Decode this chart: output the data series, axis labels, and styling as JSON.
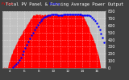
{
  "title": "Total PV Panel & Running Average Power Output",
  "bg_color": "#404040",
  "plot_bg": "#c0c0c0",
  "grid_color": "#ffffff",
  "area_color": "#ff0000",
  "avg_color": "#0000ff",
  "ylim": [
    0,
    800
  ],
  "ylabel_fontsize": 3.5,
  "xlabel_fontsize": 3.0,
  "title_fontsize": 4.0,
  "num_points": 200,
  "xlim_start": 0,
  "xlim_end": 200,
  "ytick_vals": [
    0,
    100,
    200,
    300,
    400,
    500,
    600,
    700,
    800
  ],
  "xtick_positions": [
    14,
    28,
    42,
    56,
    70,
    84,
    98,
    112,
    126,
    140,
    154,
    168,
    182,
    196
  ],
  "xtick_labels": [
    "4",
    "",
    "6",
    "",
    "8",
    "",
    "10",
    "",
    "12",
    "",
    "14",
    "",
    "16",
    ""
  ],
  "peak_start": 60,
  "peak_end": 155,
  "peak_height": 750,
  "rise_start": 10,
  "fall_end": 190
}
